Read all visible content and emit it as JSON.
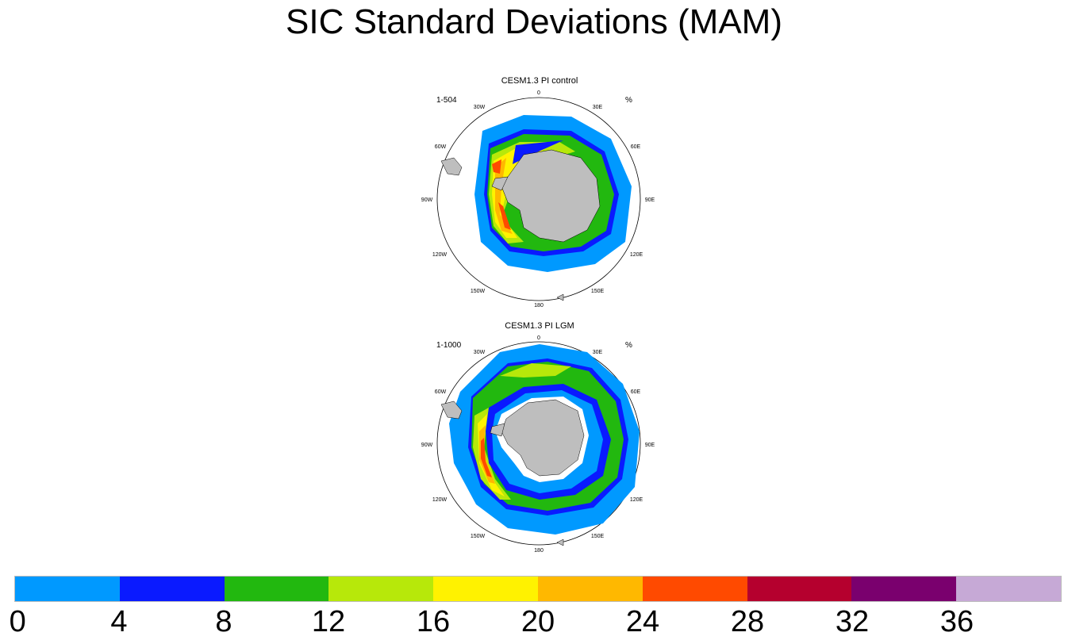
{
  "title": "SIC Standard Deviations (MAM)",
  "panels": [
    {
      "title": "CESM1.3 PI control",
      "range": "1-504",
      "units": "%",
      "lon_labels": [
        "0",
        "30E",
        "60E",
        "90E",
        "120E",
        "150E",
        "180",
        "150W",
        "120W",
        "90W",
        "60W",
        "30W"
      ]
    },
    {
      "title": "CESM1.3 PI LGM",
      "range": "1-1000",
      "units": "%",
      "lon_labels": [
        "0",
        "30E",
        "60E",
        "90E",
        "120E",
        "150E",
        "180",
        "150W",
        "120W",
        "90W",
        "60W",
        "30W"
      ]
    }
  ],
  "colorbar": {
    "colors": [
      "#0099ff",
      "#0a1aff",
      "#22b80f",
      "#b7e80a",
      "#fff200",
      "#ffb800",
      "#ff4a00",
      "#b5002e",
      "#7a006e",
      "#c6a9d6"
    ],
    "labels": [
      "0",
      "4",
      "8",
      "12",
      "16",
      "20",
      "24",
      "28",
      "32",
      "36"
    ]
  },
  "colors": {
    "land": "#bebebe",
    "ocean": "#ffffff",
    "frame": "#000000"
  }
}
